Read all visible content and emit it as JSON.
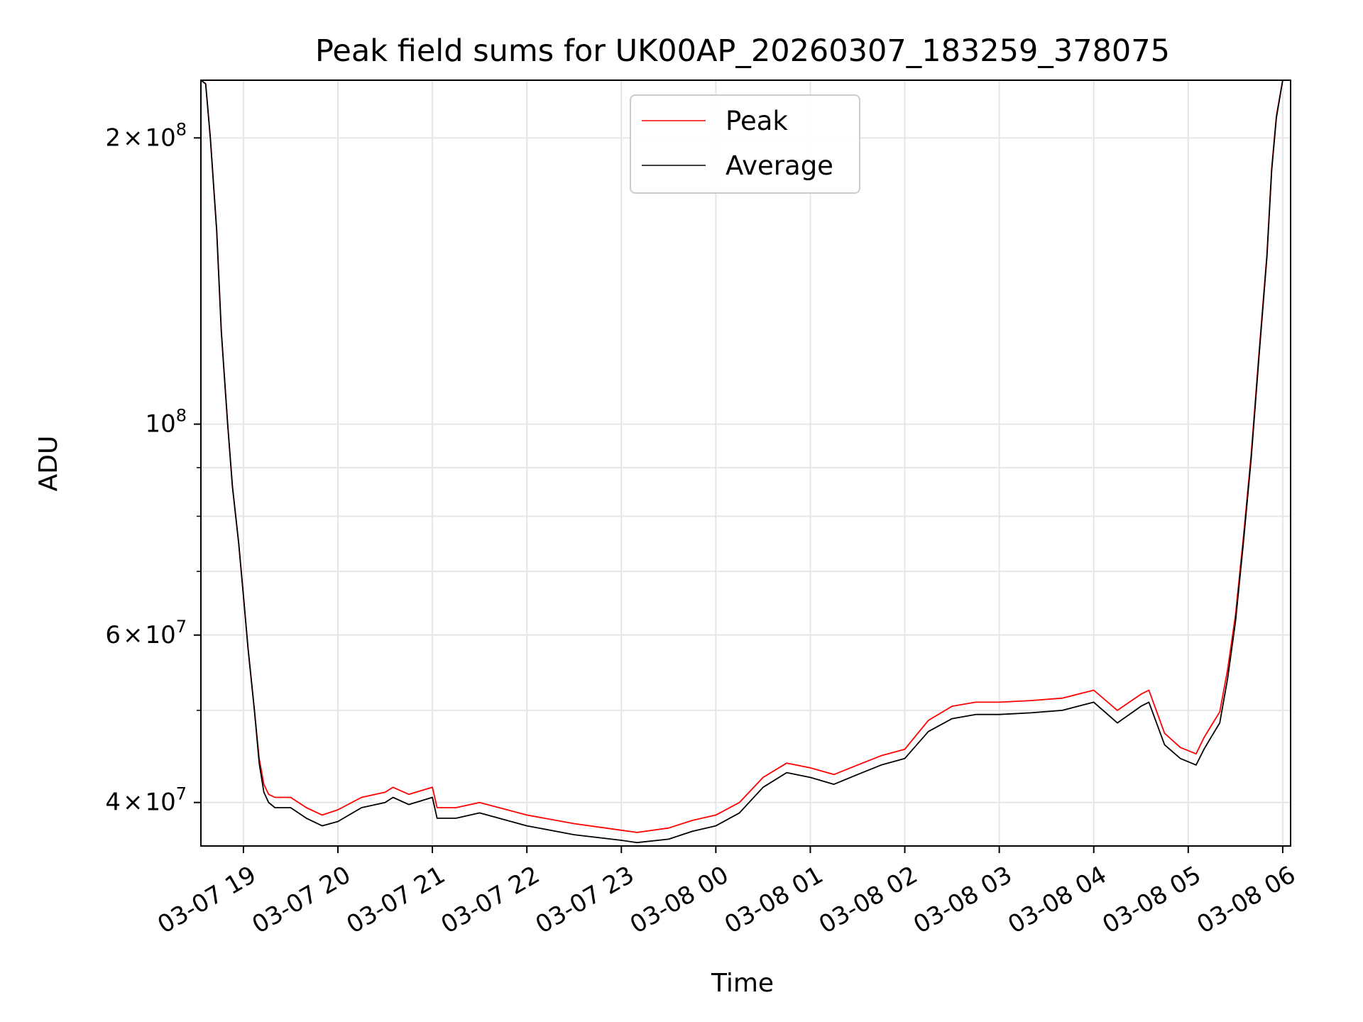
{
  "chart_data": {
    "type": "line",
    "title": "Peak field sums for UK00AP_20260307_183259_378075",
    "xlabel": "Time",
    "ylabel": "ADU",
    "yscale": "log",
    "xlim": [
      "2026-03-07 18:33",
      "2026-03-08 06:05"
    ],
    "ylim": [
      36000000,
      230000000
    ],
    "grid": true,
    "legend_position": "top-center",
    "x_ticks": [
      "03-07 19",
      "03-07 20",
      "03-07 21",
      "03-07 22",
      "03-07 23",
      "03-08 00",
      "03-08 01",
      "03-08 02",
      "03-08 03",
      "03-08 04",
      "03-08 05",
      "03-08 06"
    ],
    "y_ticks": [
      {
        "value": 200000000,
        "mantissa": "2",
        "times": "×",
        "base": "10",
        "exp": "8"
      },
      {
        "value": 100000000,
        "mantissa": "",
        "times": "",
        "base": "10",
        "exp": "8"
      },
      {
        "value": 60000000,
        "mantissa": "6",
        "times": "×",
        "base": "10",
        "exp": "7"
      },
      {
        "value": 40000000,
        "mantissa": "4",
        "times": "×",
        "base": "10",
        "exp": "7"
      }
    ],
    "x": [
      "2026-03-07 18:33",
      "2026-03-07 18:36",
      "2026-03-07 18:39",
      "2026-03-07 18:43",
      "2026-03-07 18:46",
      "2026-03-07 18:50",
      "2026-03-07 18:53",
      "2026-03-07 18:57",
      "2026-03-07 19:00",
      "2026-03-07 19:03",
      "2026-03-07 19:07",
      "2026-03-07 19:10",
      "2026-03-07 19:13",
      "2026-03-07 19:16",
      "2026-03-07 19:20",
      "2026-03-07 19:30",
      "2026-03-07 19:40",
      "2026-03-07 19:50",
      "2026-03-07 20:00",
      "2026-03-07 20:15",
      "2026-03-07 20:30",
      "2026-03-07 20:35",
      "2026-03-07 20:45",
      "2026-03-07 21:00",
      "2026-03-07 21:03",
      "2026-03-07 21:15",
      "2026-03-07 21:30",
      "2026-03-07 22:00",
      "2026-03-07 22:30",
      "2026-03-07 23:00",
      "2026-03-07 23:10",
      "2026-03-07 23:30",
      "2026-03-07 23:45",
      "2026-03-08 00:00",
      "2026-03-08 00:15",
      "2026-03-08 00:30",
      "2026-03-08 00:45",
      "2026-03-08 01:00",
      "2026-03-08 01:15",
      "2026-03-08 01:30",
      "2026-03-08 01:45",
      "2026-03-08 02:00",
      "2026-03-08 02:15",
      "2026-03-08 02:30",
      "2026-03-08 02:45",
      "2026-03-08 03:00",
      "2026-03-08 03:20",
      "2026-03-08 03:40",
      "2026-03-08 04:00",
      "2026-03-08 04:15",
      "2026-03-08 04:30",
      "2026-03-08 04:35",
      "2026-03-08 04:45",
      "2026-03-08 04:55",
      "2026-03-08 05:05",
      "2026-03-08 05:10",
      "2026-03-08 05:15",
      "2026-03-08 05:20",
      "2026-03-08 05:25",
      "2026-03-08 05:30",
      "2026-03-08 05:35",
      "2026-03-08 05:40",
      "2026-03-08 05:45",
      "2026-03-08 05:50",
      "2026-03-08 05:53",
      "2026-03-08 05:56",
      "2026-03-08 06:00"
    ],
    "series": [
      {
        "name": "Average",
        "color": "#000000",
        "values": [
          230000000,
          228000000,
          200000000,
          160000000,
          125000000,
          100000000,
          86000000,
          75000000,
          66000000,
          58000000,
          50000000,
          44000000,
          41000000,
          40000000,
          39500000,
          39500000,
          38500000,
          37800000,
          38200000,
          39500000,
          40000000,
          40500000,
          39800000,
          40500000,
          38500000,
          38500000,
          39000000,
          37800000,
          37000000,
          36500000,
          36300000,
          36600000,
          37300000,
          37800000,
          39000000,
          41500000,
          43000000,
          42500000,
          41800000,
          42800000,
          43800000,
          44500000,
          47500000,
          49000000,
          49500000,
          49500000,
          49700000,
          50000000,
          51000000,
          48500000,
          50500000,
          51000000,
          46000000,
          44500000,
          43800000,
          45500000,
          47000000,
          48500000,
          54000000,
          62000000,
          75000000,
          92000000,
          118000000,
          150000000,
          185000000,
          210000000,
          230000000
        ]
      },
      {
        "name": "Peak",
        "color": "#ff0000",
        "values": [
          230000000,
          228000000,
          200000000,
          160000000,
          125000000,
          100000000,
          86000000,
          75000000,
          66000000,
          58000000,
          50000000,
          44500000,
          41800000,
          40800000,
          40500000,
          40500000,
          39500000,
          38800000,
          39300000,
          40500000,
          41000000,
          41500000,
          40800000,
          41500000,
          39500000,
          39500000,
          40000000,
          38800000,
          38000000,
          37400000,
          37200000,
          37600000,
          38300000,
          38800000,
          40000000,
          42500000,
          44000000,
          43500000,
          42800000,
          43800000,
          44800000,
          45500000,
          48800000,
          50500000,
          51000000,
          51000000,
          51200000,
          51500000,
          52500000,
          50000000,
          52000000,
          52500000,
          47300000,
          45700000,
          45000000,
          46800000,
          48300000,
          49800000,
          55200000,
          63000000,
          76000000,
          93000000,
          119000000,
          151000000,
          186000000,
          211000000,
          230000000
        ]
      }
    ]
  }
}
